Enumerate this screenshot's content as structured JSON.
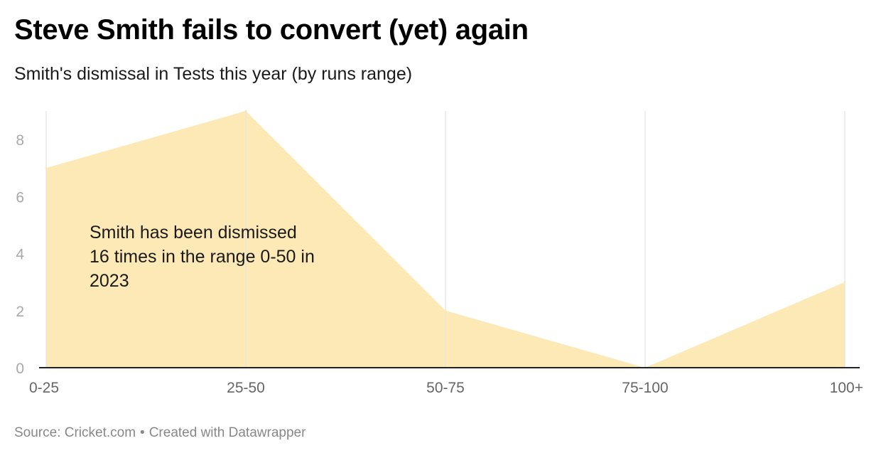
{
  "title": "Steve Smith fails to convert (yet) again",
  "subtitle": "Smith's dismissal in Tests this year (by runs range)",
  "source": {
    "text": "Source: Cricket.com",
    "separator": "•",
    "credit": "Created with Datawrapper"
  },
  "chart_data": {
    "type": "area",
    "title": "Steve Smith fails to convert (yet) again",
    "subtitle": "Smith's dismissal in Tests this year (by runs range)",
    "categories": [
      "0-25",
      "25-50",
      "50-75",
      "75-100",
      "100+"
    ],
    "values": [
      7,
      9,
      2,
      0,
      3
    ],
    "yticks": [
      0,
      2,
      4,
      6,
      8
    ],
    "ylim": [
      0,
      9
    ],
    "grid": "vertical",
    "annotation": {
      "lines": [
        "Smith has been dismissed",
        "16 times in the range 0-50 in",
        "2023"
      ]
    }
  },
  "colors": {
    "area_fill": "#fde9b5",
    "gridline": "#e2e2e2",
    "axis_line": "#222222",
    "y_tick_label": "#a9a9a9",
    "x_tick_label": "#666666",
    "source_text": "#888888"
  }
}
